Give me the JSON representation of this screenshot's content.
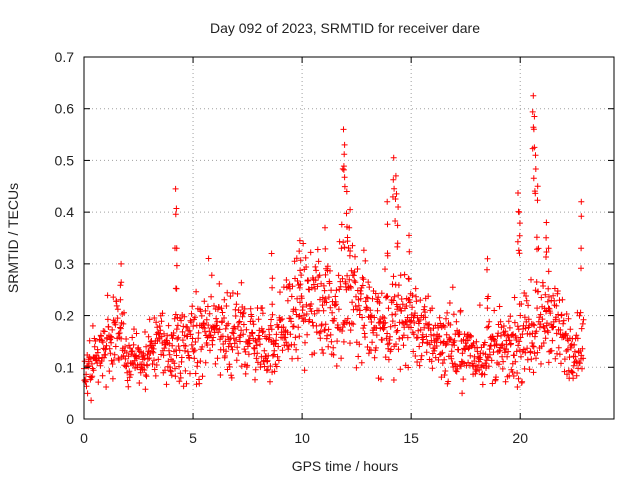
{
  "chart_data": {
    "type": "scatter",
    "title": "Day 092 of 2023, SRMTID for receiver dare",
    "xlabel": "GPS time / hours",
    "ylabel": "SRMTID / TECUs",
    "xlim": [
      0,
      24.3
    ],
    "ylim": [
      0,
      0.7
    ],
    "grid": true,
    "marker": "+",
    "color": "#ff0000",
    "x_ticks": [
      0,
      5,
      10,
      15,
      20
    ],
    "x_tick_labels": [
      "0",
      "5",
      "10",
      "15",
      "20"
    ],
    "y_ticks": [
      0,
      0.1,
      0.2,
      0.3,
      0.4,
      0.5,
      0.6,
      0.7
    ],
    "y_tick_labels": [
      "0",
      "0.1",
      "0.2",
      "0.3",
      "0.4",
      "0.5",
      "0.6",
      "0.7"
    ],
    "series": [
      {
        "name": "SRMTID",
        "trend": [
          [
            0.0,
            0.09
          ],
          [
            0.5,
            0.11
          ],
          [
            1.0,
            0.14
          ],
          [
            1.5,
            0.17
          ],
          [
            2.0,
            0.12
          ],
          [
            2.5,
            0.11
          ],
          [
            3.0,
            0.13
          ],
          [
            3.5,
            0.14
          ],
          [
            4.0,
            0.13
          ],
          [
            4.5,
            0.14
          ],
          [
            5.0,
            0.15
          ],
          [
            5.5,
            0.16
          ],
          [
            6.0,
            0.16
          ],
          [
            6.5,
            0.17
          ],
          [
            7.0,
            0.17
          ],
          [
            7.5,
            0.16
          ],
          [
            8.0,
            0.15
          ],
          [
            8.5,
            0.13
          ],
          [
            9.0,
            0.17
          ],
          [
            9.5,
            0.2
          ],
          [
            10.0,
            0.21
          ],
          [
            10.5,
            0.22
          ],
          [
            11.0,
            0.22
          ],
          [
            11.5,
            0.21
          ],
          [
            12.0,
            0.23
          ],
          [
            12.5,
            0.22
          ],
          [
            13.0,
            0.2
          ],
          [
            13.5,
            0.19
          ],
          [
            14.0,
            0.18
          ],
          [
            14.5,
            0.19
          ],
          [
            15.0,
            0.2
          ],
          [
            15.5,
            0.17
          ],
          [
            16.0,
            0.16
          ],
          [
            16.5,
            0.15
          ],
          [
            17.0,
            0.14
          ],
          [
            17.5,
            0.13
          ],
          [
            18.0,
            0.12
          ],
          [
            18.5,
            0.13
          ],
          [
            19.0,
            0.14
          ],
          [
            19.5,
            0.13
          ],
          [
            20.0,
            0.14
          ],
          [
            20.5,
            0.17
          ],
          [
            21.0,
            0.19
          ],
          [
            21.5,
            0.18
          ],
          [
            22.0,
            0.15
          ],
          [
            22.5,
            0.14
          ],
          [
            22.9,
            0.15
          ]
        ],
        "spikes": [
          {
            "x": 1.7,
            "y": 0.3
          },
          {
            "x": 4.2,
            "y": 0.445
          },
          {
            "x": 4.25,
            "y": 0.33
          },
          {
            "x": 8.6,
            "y": 0.32
          },
          {
            "x": 9.9,
            "y": 0.345
          },
          {
            "x": 11.05,
            "y": 0.37
          },
          {
            "x": 11.9,
            "y": 0.56
          },
          {
            "x": 11.95,
            "y": 0.53
          },
          {
            "x": 12.05,
            "y": 0.44
          },
          {
            "x": 12.2,
            "y": 0.405
          },
          {
            "x": 13.9,
            "y": 0.42
          },
          {
            "x": 14.2,
            "y": 0.505
          },
          {
            "x": 14.3,
            "y": 0.47
          },
          {
            "x": 14.4,
            "y": 0.41
          },
          {
            "x": 14.9,
            "y": 0.355
          },
          {
            "x": 18.5,
            "y": 0.31
          },
          {
            "x": 19.9,
            "y": 0.437
          },
          {
            "x": 19.95,
            "y": 0.4
          },
          {
            "x": 20.6,
            "y": 0.625
          },
          {
            "x": 20.65,
            "y": 0.585
          },
          {
            "x": 20.7,
            "y": 0.51
          },
          {
            "x": 20.8,
            "y": 0.45
          },
          {
            "x": 21.2,
            "y": 0.38
          },
          {
            "x": 21.3,
            "y": 0.33
          },
          {
            "x": 22.8,
            "y": 0.42
          }
        ]
      }
    ]
  }
}
